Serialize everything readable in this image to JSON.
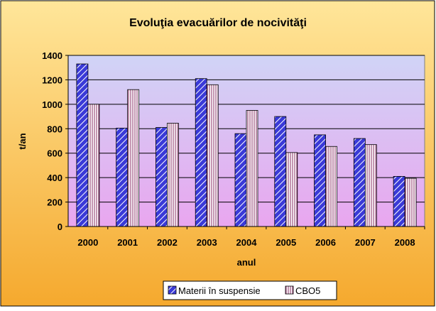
{
  "chart_data": {
    "type": "bar",
    "title": "Evoluţia evacuărilor de nocivităţi",
    "xlabel": "anul",
    "ylabel": "t/an",
    "categories": [
      "2000",
      "2001",
      "2002",
      "2003",
      "2004",
      "2005",
      "2006",
      "2007",
      "2008"
    ],
    "series": [
      {
        "name": "Materii în suspensie",
        "values": [
          1330,
          805,
          810,
          1210,
          760,
          900,
          750,
          720,
          410
        ]
      },
      {
        "name": "CBO5",
        "values": [
          1000,
          1120,
          845,
          1160,
          950,
          605,
          655,
          670,
          395
        ]
      }
    ],
    "ylim": [
      0,
      1400
    ],
    "yticks": [
      "0",
      "200",
      "400",
      "600",
      "800",
      "1000",
      "1200",
      "1400"
    ],
    "grid": true,
    "legend_position": "bottom",
    "colors": {
      "background_outer": "#f7b84a",
      "plot_top": "#d0d4f6",
      "plot_bottom": "#e9a6ef",
      "series1": "#3a3ad8",
      "series2": "#f0d8ec"
    }
  }
}
